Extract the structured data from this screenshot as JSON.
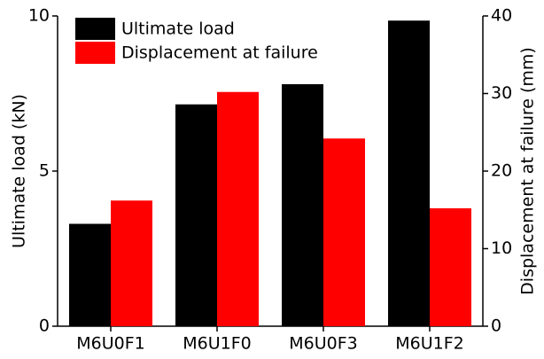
{
  "chart_data": {
    "type": "bar",
    "categories": [
      "M6U0F1",
      "M6U1F0",
      "M6U0F3",
      "M6U1F2"
    ],
    "series": [
      {
        "name": "Ultimate load",
        "color": "#000000",
        "values": [
          3.3,
          7.15,
          7.8,
          9.85
        ]
      },
      {
        "name": "Displacement at failure",
        "color": "#ff0000",
        "axis": "y2",
        "values": [
          16.2,
          30.2,
          24.2,
          15.2
        ]
      }
    ],
    "y_label": "Ultimate load (kN)",
    "y2_label": "Displacement at failure (mm)",
    "ylim": [
      0,
      10
    ],
    "yticks": [
      0,
      5,
      10
    ],
    "y2lim": [
      0,
      40
    ],
    "y2ticks": [
      0,
      10,
      20,
      30,
      40
    ],
    "legend": "upper-left"
  }
}
